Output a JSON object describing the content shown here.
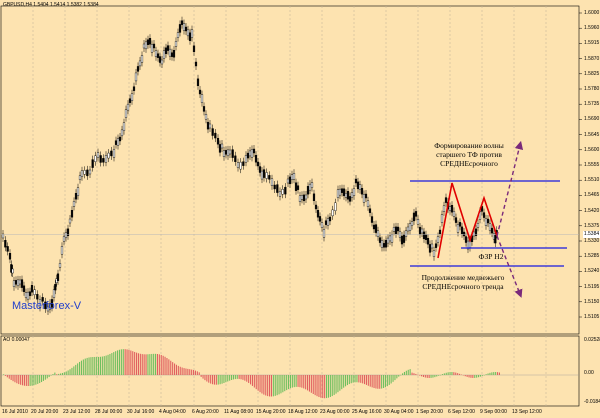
{
  "symbol_label": "GBPUSD,H4  1.5404 1.5414 1.5382 1.5384",
  "brand": "Masterforex-V",
  "annotations": {
    "top": [
      "Формирование волны",
      "старшего ТФ против",
      "СРЕДНЕсрочного"
    ],
    "middle": "ФЗР Н2",
    "bottom": [
      "Продолжение медвежьего",
      "СРЕДНЕсрочного тренда"
    ]
  },
  "price_axis": [
    "1.6000",
    "1.5960",
    "1.5915",
    "1.5870",
    "1.5825",
    "1.5780",
    "1.5735",
    "1.5690",
    "1.5645",
    "1.5600",
    "1.5555",
    "1.5510",
    "1.5465",
    "1.5420",
    "1.5375",
    "1.5330",
    "1.5285",
    "1.5240",
    "1.5195",
    "1.5150",
    "1.5105"
  ],
  "current_price": "1.5384",
  "indicator": {
    "label": "AO 0.00047",
    "axis": [
      "0.02528",
      "0.00",
      "-0.01849"
    ]
  },
  "time_axis": [
    "16 Jul 2010",
    "20 Jul 20:00",
    "23 Jul 12:00",
    "28 Jul 00:00",
    "30 Jul 16:00",
    "4 Aug 04:00",
    "6 Aug 20:00",
    "11 Aug 08:00",
    "15 Aug 20:00",
    "18 Aug 12:00",
    "23 Aug 00:00",
    "25 Aug 16:00",
    "30 Aug 04:00",
    "1 Sep 20:00",
    "6 Sep 12:00",
    "9 Sep 00:00",
    "13 Sep 12:00"
  ],
  "colors": {
    "background": "#fde3b0",
    "grid": "#c9b89a",
    "candles": "#000000",
    "support_lines": "#1a1ae0",
    "wave_red": "#e00000",
    "forecast_arrows": "#7a2a7a",
    "ao_up": "#6fbf5f",
    "ao_down": "#e06060"
  }
}
